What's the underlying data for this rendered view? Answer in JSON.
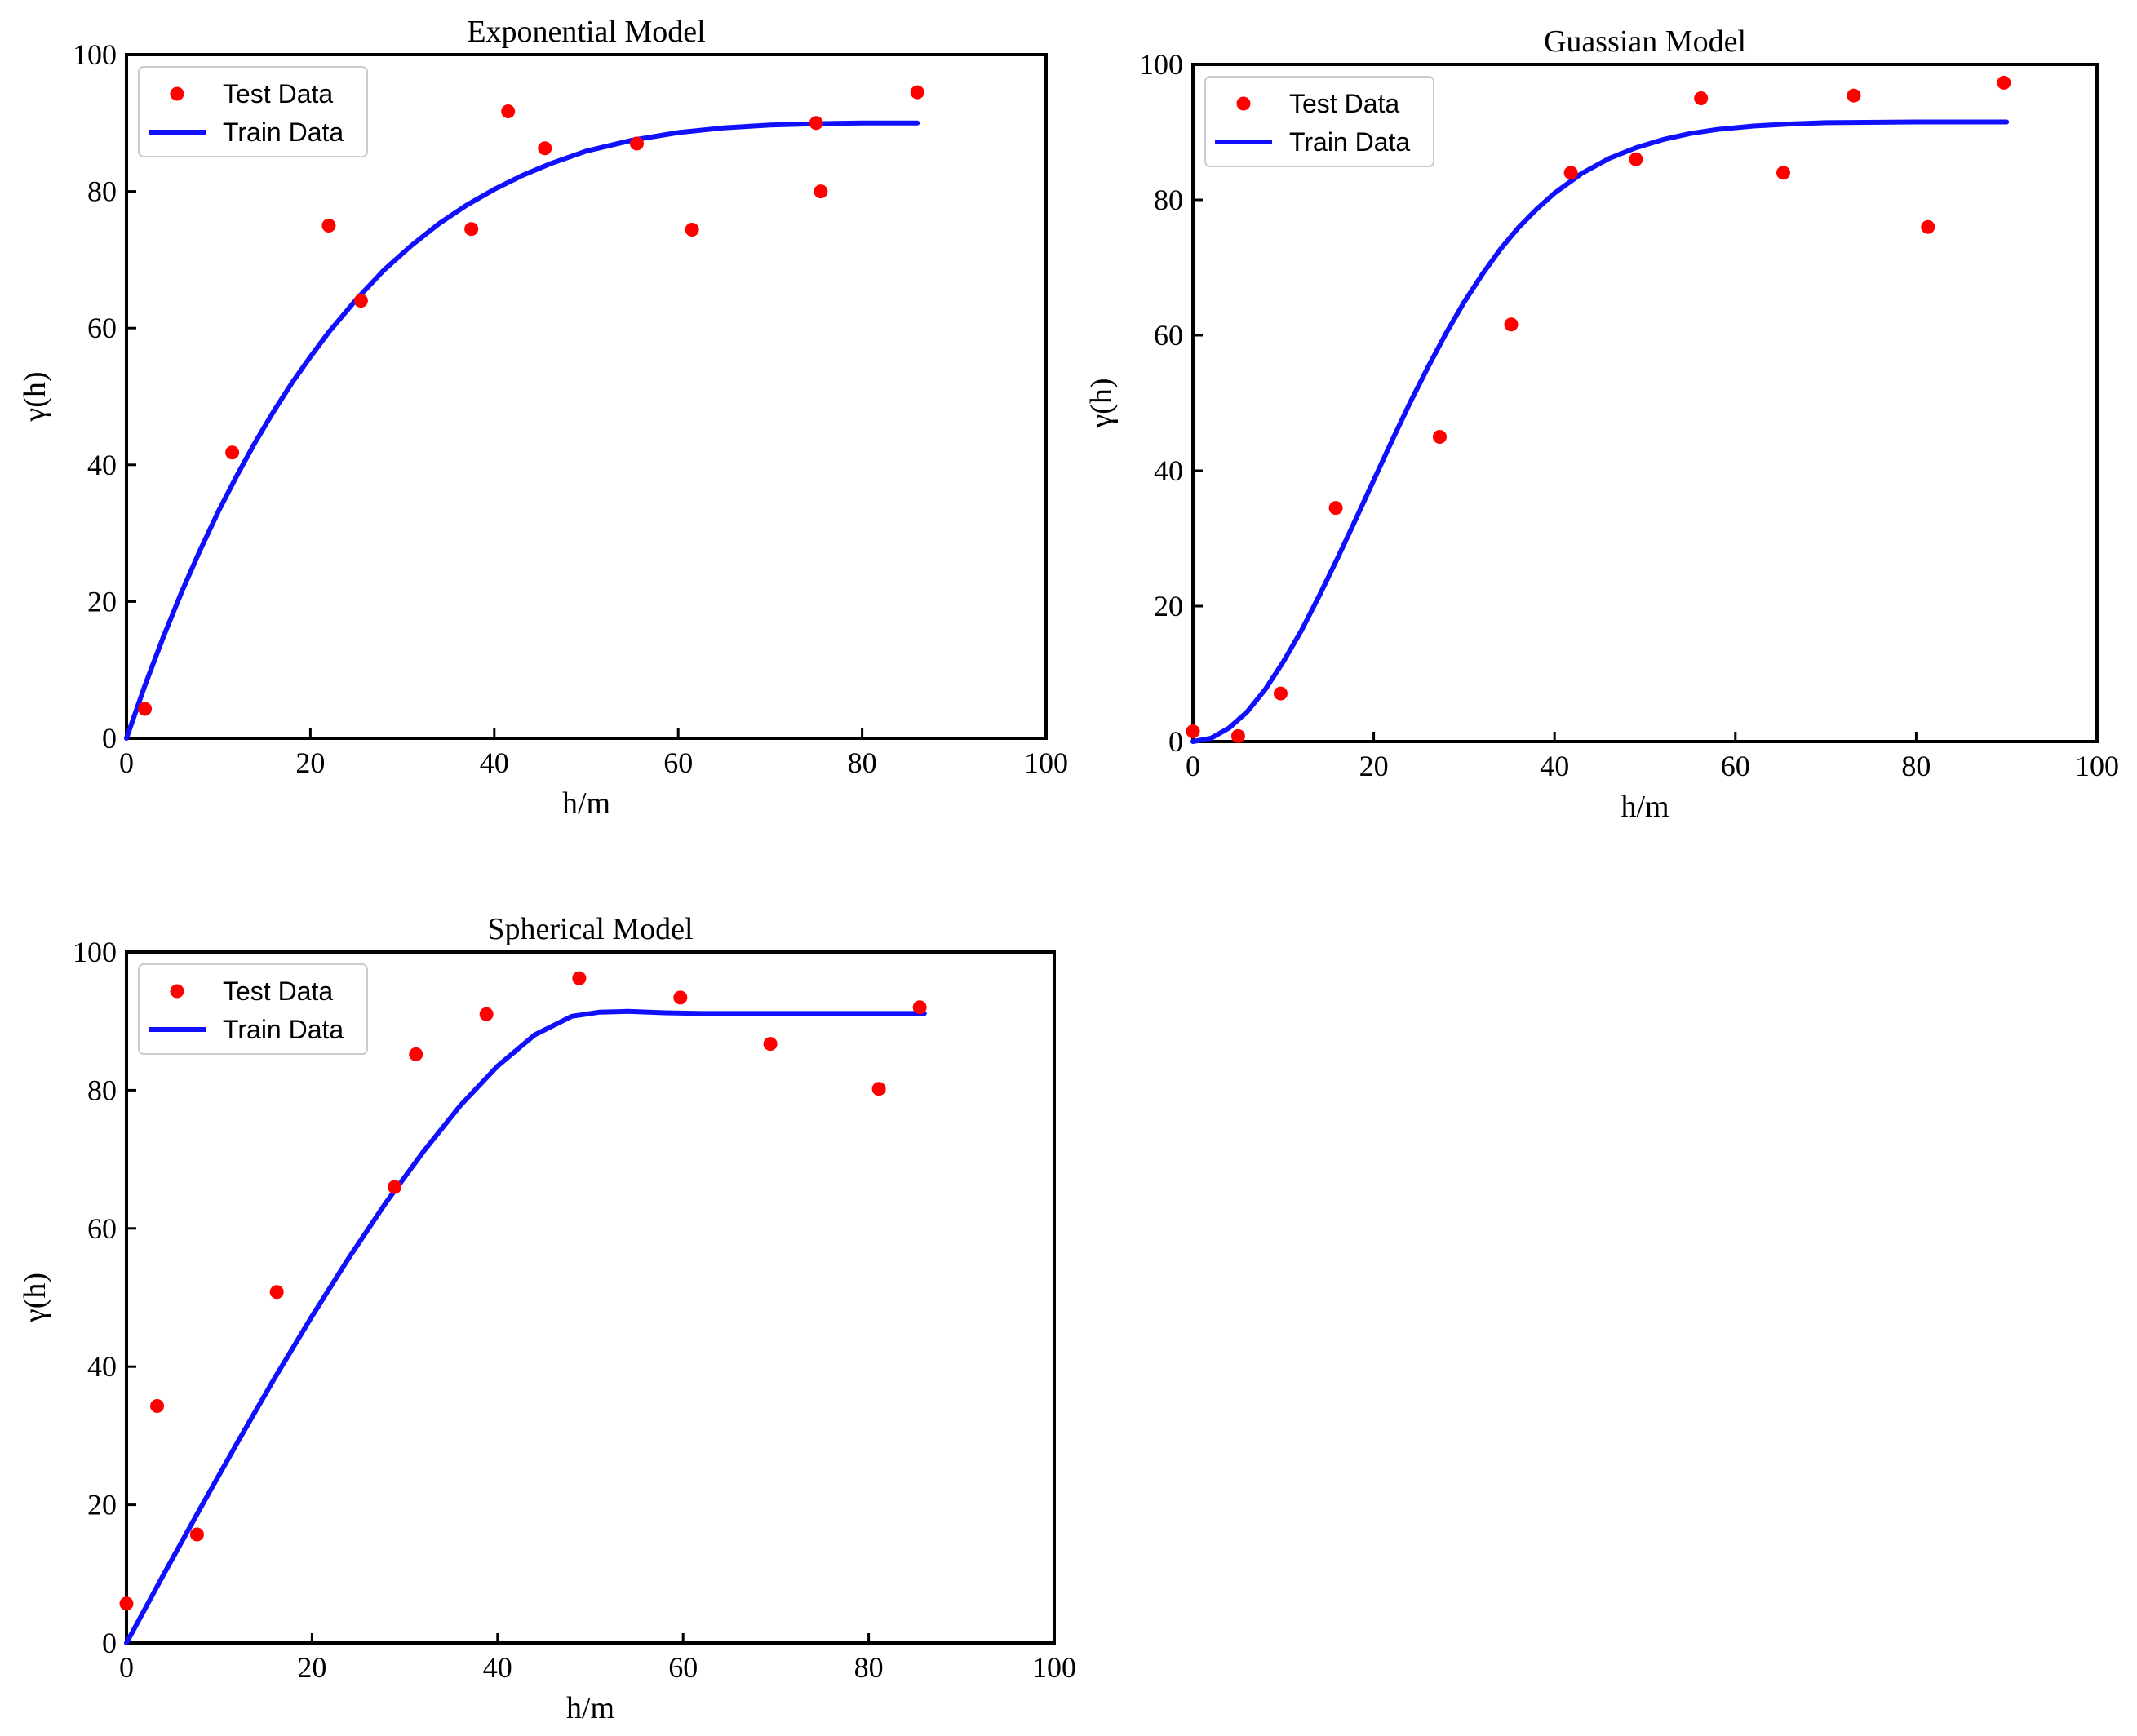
{
  "chart_data": [
    {
      "type": "scatter",
      "title": "Exponential Model",
      "xlabel": "h/m",
      "ylabel": "γ(h)",
      "xlim": [
        0,
        100
      ],
      "ylim": [
        0,
        100
      ],
      "xticks": [
        "0",
        "20",
        "40",
        "60",
        "80",
        "100"
      ],
      "yticks": [
        "0",
        "20",
        "40",
        "60",
        "80",
        "100"
      ],
      "legend_position": "top-left",
      "series": [
        {
          "name": "Test Data",
          "kind": "scatter",
          "color": "#ff0000",
          "points": [
            [
              2,
              4.3
            ],
            [
              11.5,
              41.8
            ],
            [
              22,
              75
            ],
            [
              25.5,
              64
            ],
            [
              37.5,
              74.5
            ],
            [
              41.5,
              91.7
            ],
            [
              45.5,
              86.3
            ],
            [
              55.5,
              87
            ],
            [
              61.5,
              74.4
            ],
            [
              75,
              90
            ],
            [
              75.5,
              80
            ],
            [
              86,
              94.5
            ]
          ]
        },
        {
          "name": "Train Data",
          "kind": "line",
          "color": "#1010ff",
          "points": [
            [
              0,
              0
            ],
            [
              2,
              7.7
            ],
            [
              4,
              14.8
            ],
            [
              6,
              21.4
            ],
            [
              8,
              27.5
            ],
            [
              10,
              33.2
            ],
            [
              12,
              38.4
            ],
            [
              14,
              43.3
            ],
            [
              16,
              47.8
            ],
            [
              18,
              52
            ],
            [
              20,
              55.8
            ],
            [
              22,
              59.4
            ],
            [
              25,
              64.2
            ],
            [
              28,
              68.5
            ],
            [
              31,
              72.1
            ],
            [
              34,
              75.3
            ],
            [
              37,
              78
            ],
            [
              40,
              80.3
            ],
            [
              43,
              82.3
            ],
            [
              46,
              84
            ],
            [
              50,
              85.9
            ],
            [
              55,
              87.5
            ],
            [
              60,
              88.6
            ],
            [
              65,
              89.3
            ],
            [
              70,
              89.7
            ],
            [
              75,
              89.9
            ],
            [
              80,
              90
            ],
            [
              86,
              90
            ]
          ]
        }
      ]
    },
    {
      "type": "scatter",
      "title": "Guassian Model",
      "xlabel": "h/m",
      "ylabel": "γ(h)",
      "xlim": [
        0,
        100
      ],
      "ylim": [
        0,
        100
      ],
      "xticks": [
        "0",
        "20",
        "40",
        "60",
        "80",
        "100"
      ],
      "yticks": [
        "0",
        "20",
        "40",
        "60",
        "80",
        "100"
      ],
      "legend_position": "top-left",
      "series": [
        {
          "name": "Test Data",
          "kind": "scatter",
          "color": "#ff0000",
          "points": [
            [
              0,
              1.5
            ],
            [
              5,
              0.8
            ],
            [
              9.7,
              7.1
            ],
            [
              15.8,
              34.5
            ],
            [
              27.3,
              45
            ],
            [
              35.2,
              61.6
            ],
            [
              41.8,
              84
            ],
            [
              49,
              86
            ],
            [
              56.2,
              95
            ],
            [
              65.3,
              84
            ],
            [
              73.1,
              95.4
            ],
            [
              81.3,
              76
            ],
            [
              89.7,
              97.3
            ]
          ]
        },
        {
          "name": "Train Data",
          "kind": "line",
          "color": "#1010ff",
          "points": [
            [
              0,
              0
            ],
            [
              2,
              0.5
            ],
            [
              4,
              2
            ],
            [
              6,
              4.4
            ],
            [
              8,
              7.7
            ],
            [
              10,
              11.8
            ],
            [
              12,
              16.4
            ],
            [
              14,
              21.6
            ],
            [
              16,
              27.1
            ],
            [
              18,
              32.8
            ],
            [
              20,
              38.6
            ],
            [
              22,
              44.4
            ],
            [
              24,
              50
            ],
            [
              26,
              55.3
            ],
            [
              28,
              60.3
            ],
            [
              30,
              64.9
            ],
            [
              32,
              69
            ],
            [
              34,
              72.7
            ],
            [
              36,
              75.9
            ],
            [
              38,
              78.6
            ],
            [
              40,
              81
            ],
            [
              43,
              83.9
            ],
            [
              46,
              86.1
            ],
            [
              49,
              87.7
            ],
            [
              52,
              88.9
            ],
            [
              55,
              89.8
            ],
            [
              58,
              90.4
            ],
            [
              62,
              90.9
            ],
            [
              66,
              91.2
            ],
            [
              70,
              91.4
            ],
            [
              80,
              91.5
            ],
            [
              90,
              91.5
            ]
          ]
        }
      ]
    },
    {
      "type": "scatter",
      "title": "Spherical Model",
      "xlabel": "h/m",
      "ylabel": "γ(h)",
      "xlim": [
        0,
        100
      ],
      "ylim": [
        0,
        100
      ],
      "xticks": [
        "0",
        "20",
        "40",
        "60",
        "80",
        "100"
      ],
      "yticks": [
        "0",
        "20",
        "40",
        "60",
        "80",
        "100"
      ],
      "legend_position": "top-left",
      "series": [
        {
          "name": "Test Data",
          "kind": "scatter",
          "color": "#ff0000",
          "points": [
            [
              0,
              5.7
            ],
            [
              3.3,
              34.3
            ],
            [
              7.6,
              15.7
            ],
            [
              16.2,
              50.8
            ],
            [
              28.9,
              66
            ],
            [
              31.2,
              85.2
            ],
            [
              38.8,
              91
            ],
            [
              48.8,
              96.2
            ],
            [
              59.7,
              93.4
            ],
            [
              69.4,
              86.7
            ],
            [
              81.1,
              80.2
            ],
            [
              85.5,
              92
            ]
          ]
        },
        {
          "name": "Train Data",
          "kind": "line",
          "color": "#1010ff",
          "points": [
            [
              0,
              0
            ],
            [
              4,
              9.9
            ],
            [
              8,
              19.6
            ],
            [
              12,
              29.1
            ],
            [
              16,
              38.4
            ],
            [
              20,
              47.3
            ],
            [
              24,
              55.8
            ],
            [
              28,
              63.8
            ],
            [
              32,
              71.1
            ],
            [
              36,
              77.8
            ],
            [
              40,
              83.5
            ],
            [
              44,
              88
            ],
            [
              48,
              90.7
            ],
            [
              51,
              91.3
            ],
            [
              54,
              91.4
            ],
            [
              58,
              91.2
            ],
            [
              62,
              91.1
            ],
            [
              70,
              91.1
            ],
            [
              80,
              91.1
            ],
            [
              86,
              91.1
            ]
          ]
        }
      ]
    }
  ]
}
